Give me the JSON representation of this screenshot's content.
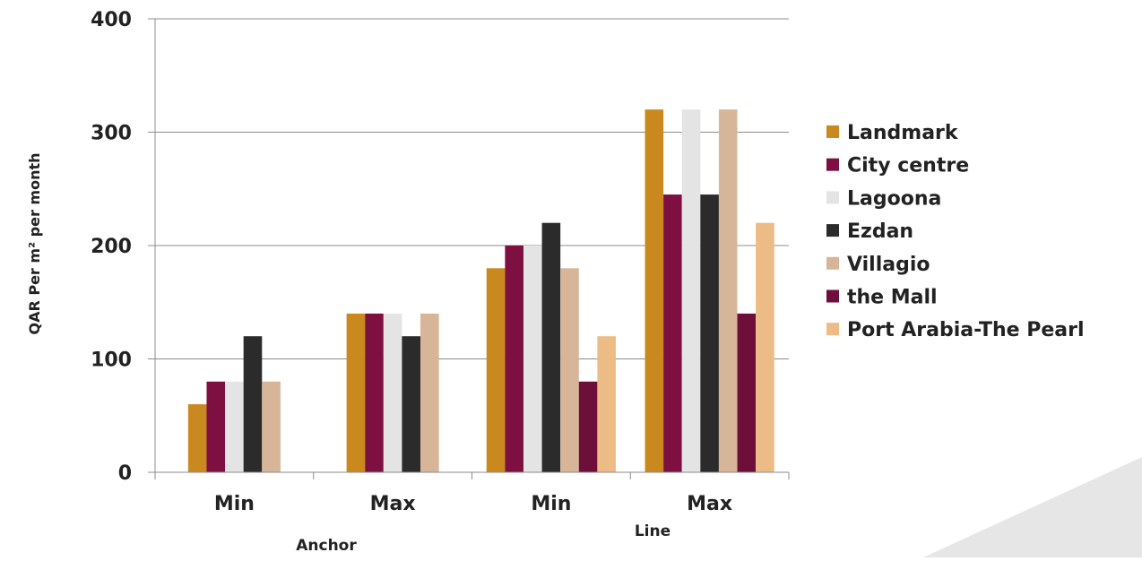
{
  "chart_data": {
    "type": "bar",
    "ylabel": "QAR Per m² per month",
    "ylim": [
      0,
      400
    ],
    "y_ticks": [
      "0",
      "100",
      "200",
      "300",
      "400"
    ],
    "categories": [
      "Min",
      "Max",
      "Min",
      "Max"
    ],
    "category_groups": [
      {
        "label": "Anchor",
        "categories": [
          0,
          1
        ]
      },
      {
        "label": "Line",
        "categories": [
          2,
          3
        ]
      }
    ],
    "legend_position": "right",
    "grid": true,
    "series": [
      {
        "name": "Landmark",
        "color": "#C9891E",
        "values": [
          60,
          140,
          180,
          320
        ]
      },
      {
        "name": "City centre",
        "color": "#7D1040",
        "values": [
          80,
          140,
          200,
          245
        ]
      },
      {
        "name": "Lagoona",
        "color": "#E4E4E4",
        "values": [
          80,
          140,
          200,
          320
        ]
      },
      {
        "name": "Ezdan",
        "color": "#2B2B2B",
        "values": [
          120,
          120,
          220,
          245
        ]
      },
      {
        "name": "Villagio",
        "color": "#D6B598",
        "values": [
          80,
          140,
          180,
          320
        ]
      },
      {
        "name": "the Mall",
        "color": "#6E0F3A",
        "values": [
          null,
          null,
          80,
          140
        ]
      },
      {
        "name": "Port Arabia-The Pearl",
        "color": "#EDBC86",
        "values": [
          null,
          null,
          120,
          220
        ]
      }
    ]
  }
}
